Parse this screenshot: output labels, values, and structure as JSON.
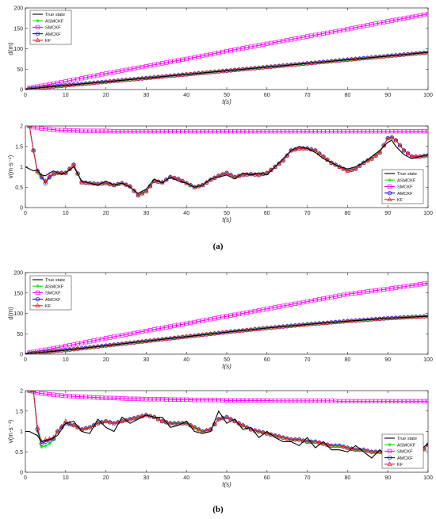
{
  "captions": {
    "a": "(a)",
    "b": "(b)"
  },
  "legend_labels": [
    "True state",
    "ASMCKF",
    "SMCKF",
    "AMCKF",
    "KF"
  ],
  "colors": {
    "true": "#000000",
    "asmckf": "#00ee00",
    "smckf": "#ff00ff",
    "amckf": "#0000ff",
    "kf": "#e8202a"
  },
  "chart_data": [
    {
      "id": "a-displacement",
      "type": "line",
      "xlabel": "t(s)",
      "ylabel": "d(m)",
      "xlim": [
        0,
        100
      ],
      "ylim": [
        0,
        200
      ],
      "xticks": [
        0,
        10,
        20,
        30,
        40,
        50,
        60,
        70,
        80,
        90,
        100
      ],
      "yticks": [
        0,
        50,
        100,
        150,
        200
      ],
      "legend": "top-left",
      "grid": false,
      "x": [
        0,
        10,
        20,
        30,
        40,
        50,
        60,
        70,
        80,
        90,
        100
      ],
      "series": [
        {
          "name": "True state",
          "values": [
            1,
            10,
            19,
            28,
            37,
            46,
            55,
            64,
            73,
            82,
            91
          ]
        },
        {
          "name": "ASMCKF",
          "values": [
            1,
            10,
            19,
            28,
            37,
            46,
            55,
            64,
            73,
            82,
            91
          ]
        },
        {
          "name": "SMCKF",
          "values": [
            2,
            20,
            39,
            57,
            75,
            94,
            112,
            130,
            148,
            167,
            185
          ]
        },
        {
          "name": "AMCKF",
          "values": [
            1,
            10,
            19,
            28,
            37,
            46,
            55,
            64,
            73,
            82,
            91
          ]
        },
        {
          "name": "KF",
          "values": [
            1,
            10,
            19,
            28,
            37,
            46,
            55,
            64,
            73,
            82,
            91
          ]
        }
      ]
    },
    {
      "id": "a-velocity",
      "type": "line",
      "xlabel": "t(s)",
      "ylabel": "v(m·s⁻¹)",
      "xlim": [
        0,
        100
      ],
      "ylim": [
        0,
        2
      ],
      "xticks": [
        0,
        10,
        20,
        30,
        40,
        50,
        60,
        70,
        80,
        90,
        100
      ],
      "yticks": [
        0,
        0.5,
        1,
        1.5,
        2
      ],
      "ytick_labels": [
        "0",
        "0.5",
        "1",
        "1.5",
        "2"
      ],
      "legend": "bottom-right",
      "grid": false,
      "x": [
        0,
        1,
        2,
        3,
        4,
        5,
        6,
        7,
        8,
        9,
        10,
        12,
        14,
        16,
        18,
        20,
        22,
        24,
        26,
        28,
        30,
        32,
        34,
        36,
        38,
        40,
        42,
        44,
        46,
        48,
        50,
        52,
        54,
        56,
        58,
        60,
        62,
        64,
        66,
        68,
        70,
        72,
        74,
        76,
        78,
        80,
        82,
        84,
        86,
        88,
        90,
        91,
        92,
        94,
        96,
        98,
        100
      ],
      "series": [
        {
          "name": "True state",
          "values": [
            1.0,
            0.95,
            0.9,
            0.92,
            0.8,
            0.78,
            0.85,
            0.9,
            0.85,
            0.82,
            0.85,
            1.0,
            0.65,
            0.6,
            0.55,
            0.65,
            0.55,
            0.6,
            0.5,
            0.35,
            0.45,
            0.7,
            0.6,
            0.75,
            0.65,
            0.6,
            0.5,
            0.55,
            0.7,
            0.75,
            0.8,
            0.7,
            0.85,
            0.8,
            0.85,
            0.8,
            1.0,
            1.2,
            1.4,
            1.5,
            1.45,
            1.35,
            1.2,
            1.1,
            1.0,
            0.95,
            1.0,
            1.1,
            1.25,
            1.4,
            1.6,
            1.65,
            1.5,
            1.3,
            1.2,
            1.25,
            1.3
          ]
        },
        {
          "name": "ASMCKF",
          "values": [
            2.0,
            2.0,
            1.4,
            0.85,
            0.72,
            0.62,
            0.72,
            0.82,
            0.85,
            0.85,
            0.85,
            1.05,
            0.62,
            0.6,
            0.58,
            0.6,
            0.55,
            0.6,
            0.52,
            0.3,
            0.4,
            0.65,
            0.62,
            0.75,
            0.7,
            0.6,
            0.5,
            0.55,
            0.68,
            0.78,
            0.85,
            0.75,
            0.8,
            0.82,
            0.8,
            0.85,
            1.0,
            1.15,
            1.4,
            1.45,
            1.45,
            1.4,
            1.25,
            1.1,
            1.0,
            0.9,
            0.95,
            1.1,
            1.2,
            1.35,
            1.7,
            1.72,
            1.65,
            1.4,
            1.25,
            1.25,
            1.28
          ]
        },
        {
          "name": "SMCKF",
          "values": [
            2.0,
            2.0,
            1.97,
            1.95,
            1.94,
            1.93,
            1.92,
            1.91,
            1.9,
            1.9,
            1.89,
            1.89,
            1.88,
            1.88,
            1.88,
            1.88,
            1.87,
            1.87,
            1.87,
            1.87,
            1.87,
            1.87,
            1.87,
            1.87,
            1.87,
            1.87,
            1.87,
            1.87,
            1.87,
            1.87,
            1.87,
            1.87,
            1.87,
            1.87,
            1.87,
            1.87,
            1.87,
            1.87,
            1.87,
            1.87,
            1.87,
            1.87,
            1.87,
            1.87,
            1.87,
            1.87,
            1.87,
            1.87,
            1.87,
            1.87,
            1.87,
            1.87,
            1.87,
            1.87,
            1.87,
            1.87,
            1.87
          ]
        },
        {
          "name": "AMCKF",
          "values": [
            2.0,
            2.0,
            1.4,
            0.9,
            0.75,
            0.6,
            0.75,
            0.82,
            0.85,
            0.85,
            0.85,
            1.05,
            0.62,
            0.6,
            0.58,
            0.6,
            0.55,
            0.6,
            0.52,
            0.3,
            0.4,
            0.65,
            0.62,
            0.75,
            0.7,
            0.6,
            0.5,
            0.55,
            0.68,
            0.78,
            0.85,
            0.75,
            0.8,
            0.82,
            0.8,
            0.85,
            1.0,
            1.15,
            1.4,
            1.45,
            1.45,
            1.4,
            1.25,
            1.1,
            1.0,
            0.9,
            0.95,
            1.1,
            1.2,
            1.35,
            1.7,
            1.72,
            1.65,
            1.4,
            1.25,
            1.25,
            1.28
          ]
        },
        {
          "name": "KF",
          "values": [
            2.0,
            2.0,
            1.4,
            0.9,
            0.78,
            0.65,
            0.78,
            0.82,
            0.85,
            0.85,
            0.85,
            1.05,
            0.62,
            0.6,
            0.58,
            0.6,
            0.55,
            0.6,
            0.52,
            0.3,
            0.4,
            0.65,
            0.62,
            0.75,
            0.7,
            0.6,
            0.5,
            0.55,
            0.68,
            0.78,
            0.85,
            0.75,
            0.8,
            0.82,
            0.8,
            0.85,
            1.0,
            1.15,
            1.4,
            1.45,
            1.45,
            1.4,
            1.25,
            1.1,
            1.0,
            0.9,
            0.95,
            1.1,
            1.2,
            1.35,
            1.7,
            1.72,
            1.65,
            1.4,
            1.25,
            1.25,
            1.28
          ]
        }
      ]
    },
    {
      "id": "b-displacement",
      "type": "line",
      "xlabel": "t(s)",
      "ylabel": "d(m)",
      "xlim": [
        0,
        100
      ],
      "ylim": [
        0,
        200
      ],
      "xticks": [
        0,
        10,
        20,
        30,
        40,
        50,
        60,
        70,
        80,
        90,
        100
      ],
      "yticks": [
        0,
        50,
        100,
        150,
        200
      ],
      "legend": "top-left",
      "grid": false,
      "x": [
        0,
        10,
        20,
        30,
        40,
        50,
        60,
        70,
        80,
        90,
        100
      ],
      "series": [
        {
          "name": "True state",
          "values": [
            1,
            10,
            21,
            32,
            43,
            54,
            64,
            73,
            81,
            88,
            93
          ]
        },
        {
          "name": "ASMCKF",
          "values": [
            1,
            10,
            21,
            32,
            43,
            54,
            64,
            73,
            81,
            88,
            93
          ]
        },
        {
          "name": "SMCKF",
          "values": [
            2,
            20,
            39,
            57,
            75,
            93,
            111,
            129,
            147,
            160,
            174
          ]
        },
        {
          "name": "AMCKF",
          "values": [
            1,
            10,
            21,
            32,
            43,
            54,
            64,
            73,
            81,
            88,
            93
          ]
        },
        {
          "name": "KF",
          "values": [
            1,
            10,
            21,
            32,
            43,
            54,
            64,
            73,
            81,
            88,
            93
          ]
        }
      ]
    },
    {
      "id": "b-velocity",
      "type": "line",
      "xlabel": "t(s)",
      "ylabel": "v(m·s⁻¹)",
      "xlim": [
        0,
        100
      ],
      "ylim": [
        0,
        2
      ],
      "xticks": [
        0,
        10,
        20,
        30,
        40,
        50,
        60,
        70,
        80,
        90,
        100
      ],
      "yticks": [
        0,
        0.5,
        1,
        1.5,
        2
      ],
      "ytick_labels": [
        "0",
        "0.5",
        "1",
        "1.5",
        "2"
      ],
      "legend": "bottom-right",
      "grid": false,
      "x": [
        0,
        1,
        2,
        3,
        4,
        5,
        6,
        7,
        8,
        10,
        12,
        14,
        16,
        18,
        20,
        22,
        24,
        26,
        28,
        30,
        32,
        34,
        36,
        38,
        40,
        42,
        44,
        46,
        48,
        50,
        52,
        54,
        56,
        58,
        60,
        62,
        64,
        66,
        68,
        70,
        72,
        74,
        76,
        78,
        80,
        82,
        84,
        86,
        88,
        90,
        92,
        94,
        96,
        98,
        100
      ],
      "series": [
        {
          "name": "True state",
          "values": [
            1.0,
            1.0,
            0.95,
            0.9,
            0.75,
            0.78,
            0.8,
            0.85,
            0.9,
            1.2,
            1.25,
            1.0,
            0.95,
            1.3,
            1.1,
            1.0,
            1.35,
            1.2,
            1.3,
            1.4,
            1.35,
            1.35,
            1.1,
            1.15,
            1.25,
            1.0,
            0.95,
            1.0,
            1.5,
            1.2,
            1.3,
            1.05,
            1.1,
            0.85,
            1.0,
            0.85,
            0.75,
            0.75,
            0.65,
            0.85,
            0.6,
            0.75,
            0.55,
            0.55,
            0.5,
            0.65,
            0.5,
            0.35,
            0.55,
            0.4,
            0.3,
            0.35,
            0.45,
            0.55,
            0.7
          ]
        },
        {
          "name": "ASMCKF",
          "values": [
            2.0,
            2.0,
            2.0,
            1.0,
            0.62,
            0.65,
            0.7,
            0.8,
            1.0,
            1.2,
            1.15,
            1.05,
            1.1,
            1.2,
            1.25,
            1.2,
            1.25,
            1.3,
            1.35,
            1.4,
            1.35,
            1.25,
            1.2,
            1.2,
            1.2,
            1.1,
            1.0,
            1.05,
            1.3,
            1.35,
            1.25,
            1.15,
            1.05,
            1.0,
            0.95,
            0.9,
            0.85,
            0.8,
            0.8,
            0.75,
            0.75,
            0.7,
            0.65,
            0.65,
            0.6,
            0.55,
            0.55,
            0.5,
            0.5,
            0.45,
            0.4,
            0.35,
            0.25,
            0.45,
            0.68
          ]
        },
        {
          "name": "SMCKF",
          "values": [
            2.0,
            2.0,
            1.97,
            1.95,
            1.93,
            1.92,
            1.91,
            1.9,
            1.89,
            1.87,
            1.86,
            1.85,
            1.84,
            1.83,
            1.82,
            1.82,
            1.81,
            1.8,
            1.8,
            1.79,
            1.79,
            1.79,
            1.78,
            1.78,
            1.78,
            1.77,
            1.77,
            1.77,
            1.77,
            1.76,
            1.76,
            1.76,
            1.76,
            1.76,
            1.76,
            1.75,
            1.75,
            1.75,
            1.75,
            1.75,
            1.75,
            1.75,
            1.75,
            1.74,
            1.74,
            1.74,
            1.74,
            1.74,
            1.74,
            1.74,
            1.74,
            1.74,
            1.74,
            1.74,
            1.74
          ]
        },
        {
          "name": "AMCKF",
          "values": [
            2.0,
            2.0,
            2.0,
            1.05,
            0.7,
            0.75,
            0.78,
            0.82,
            1.0,
            1.2,
            1.15,
            1.05,
            1.1,
            1.2,
            1.25,
            1.2,
            1.25,
            1.3,
            1.35,
            1.4,
            1.35,
            1.25,
            1.2,
            1.2,
            1.2,
            1.1,
            1.0,
            1.05,
            1.3,
            1.35,
            1.25,
            1.15,
            1.05,
            1.0,
            0.95,
            0.9,
            0.85,
            0.8,
            0.8,
            0.75,
            0.75,
            0.7,
            0.65,
            0.65,
            0.6,
            0.55,
            0.55,
            0.5,
            0.5,
            0.45,
            0.4,
            0.35,
            0.25,
            0.45,
            0.68
          ]
        },
        {
          "name": "KF",
          "values": [
            2.0,
            2.0,
            2.0,
            1.1,
            0.75,
            0.8,
            0.82,
            0.85,
            1.0,
            1.25,
            1.15,
            1.05,
            1.1,
            1.2,
            1.25,
            1.2,
            1.25,
            1.3,
            1.35,
            1.4,
            1.35,
            1.25,
            1.2,
            1.2,
            1.2,
            1.1,
            1.0,
            1.05,
            1.3,
            1.35,
            1.25,
            1.15,
            1.05,
            1.0,
            0.95,
            0.9,
            0.85,
            0.8,
            0.8,
            0.75,
            0.75,
            0.7,
            0.65,
            0.65,
            0.6,
            0.55,
            0.55,
            0.5,
            0.5,
            0.45,
            0.4,
            0.35,
            0.25,
            0.45,
            0.68
          ]
        }
      ]
    }
  ]
}
